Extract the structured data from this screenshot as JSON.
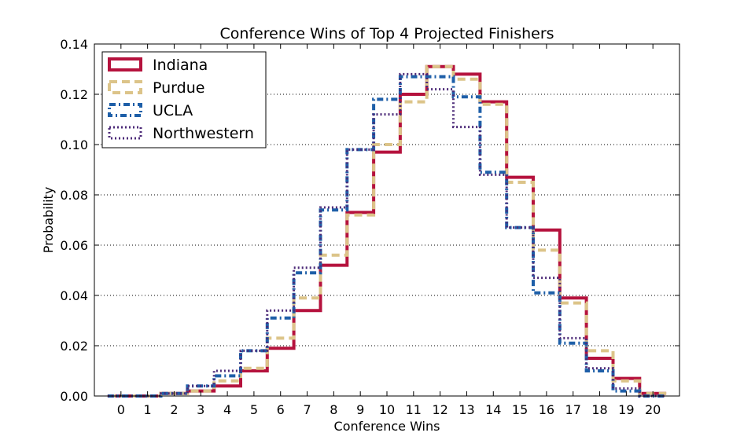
{
  "chart_data": {
    "type": "step",
    "title": "Conference Wins of Top 4 Projected Finishers",
    "xlabel": "Conference Wins",
    "ylabel": "Probability",
    "x": [
      0,
      1,
      2,
      3,
      4,
      5,
      6,
      7,
      8,
      9,
      10,
      11,
      12,
      13,
      14,
      15,
      16,
      17,
      18,
      19,
      20
    ],
    "xlim": [
      -1,
      21
    ],
    "ylim": [
      0,
      0.14
    ],
    "yticks": [
      "0.00",
      "0.02",
      "0.04",
      "0.06",
      "0.08",
      "0.10",
      "0.12",
      "0.14"
    ],
    "grid": "horizontal dotted",
    "legend_position": "top-left",
    "series": [
      {
        "name": "Indiana",
        "color": "#b5123d",
        "values": [
          0.0,
          0.0,
          0.001,
          0.002,
          0.004,
          0.01,
          0.019,
          0.034,
          0.052,
          0.073,
          0.097,
          0.12,
          0.131,
          0.128,
          0.117,
          0.087,
          0.066,
          0.039,
          0.015,
          0.007,
          0.001
        ]
      },
      {
        "name": "Purdue",
        "color": "#dcc489",
        "values": [
          0.0,
          0.0,
          0.001,
          0.002,
          0.006,
          0.011,
          0.023,
          0.039,
          0.056,
          0.072,
          0.1,
          0.117,
          0.131,
          0.126,
          0.116,
          0.085,
          0.058,
          0.037,
          0.018,
          0.006,
          0.001
        ]
      },
      {
        "name": "UCLA",
        "color": "#1e5fa8",
        "values": [
          0.0,
          0.0,
          0.001,
          0.004,
          0.008,
          0.018,
          0.031,
          0.049,
          0.074,
          0.098,
          0.118,
          0.127,
          0.127,
          0.119,
          0.089,
          0.067,
          0.041,
          0.021,
          0.01,
          0.002,
          0.0
        ]
      },
      {
        "name": "Northwestern",
        "color": "#4c2a78",
        "values": [
          0.0,
          0.0,
          0.001,
          0.004,
          0.01,
          0.018,
          0.034,
          0.051,
          0.075,
          0.098,
          0.112,
          0.128,
          0.122,
          0.107,
          0.088,
          0.067,
          0.047,
          0.023,
          0.011,
          0.003,
          0.0
        ]
      }
    ]
  }
}
